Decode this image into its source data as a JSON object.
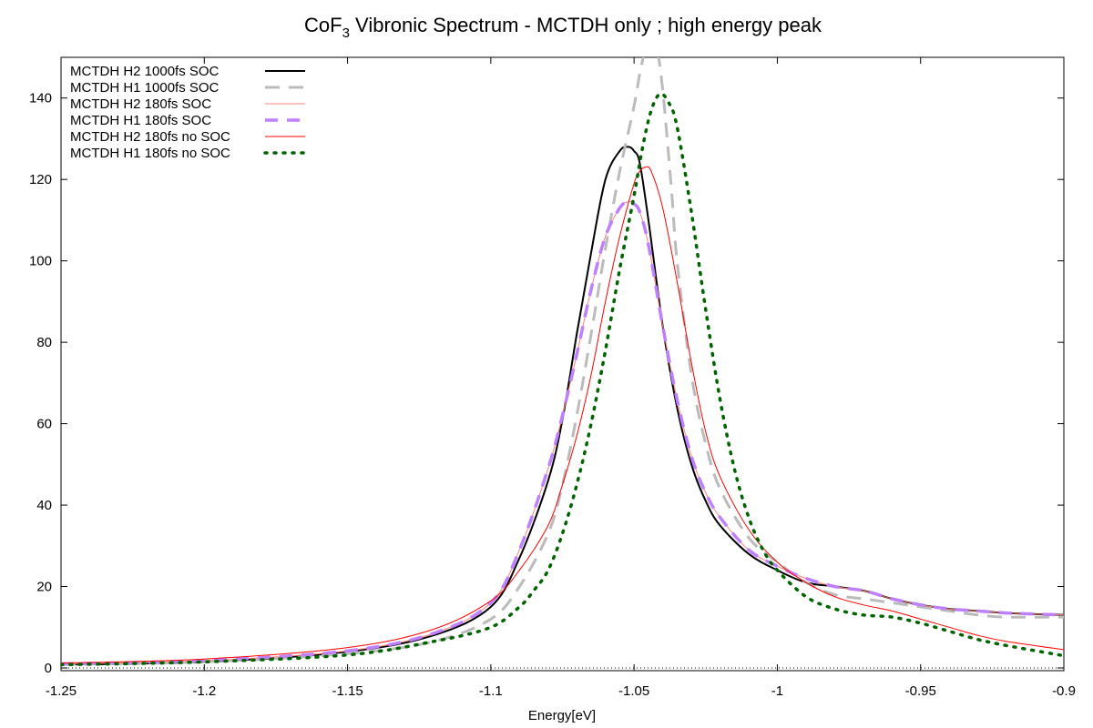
{
  "chart_data": {
    "type": "line",
    "title": {
      "main": "CoF",
      "sub": "3",
      "rest": " Vibronic Spectrum - MCTDH only ; high energy peak"
    },
    "xlabel": "Energy[eV]",
    "ylabel": "",
    "xlim": [
      -1.25,
      -0.9
    ],
    "ylim": [
      0,
      150
    ],
    "xticks": [
      -1.25,
      -1.2,
      -1.15,
      -1.1,
      -1.05,
      -1.0,
      -0.95,
      -0.9
    ],
    "xtick_labels": [
      "-1.25",
      "-1.2",
      "-1.15",
      "-1.1",
      "-1.05",
      "-1",
      "-0.95",
      "-0.9"
    ],
    "yticks": [
      0,
      20,
      40,
      60,
      80,
      100,
      120,
      140
    ],
    "ytick_labels": [
      "0",
      "20",
      "40",
      "60",
      "80",
      "100",
      "120",
      "140"
    ],
    "grid": false,
    "legend_position": "top-left",
    "baseline": {
      "y": 0,
      "style": "dotted",
      "color": "#000000"
    },
    "series": [
      {
        "name": "MCTDH H2 1000fs SOC",
        "color": "#000000",
        "dash": "solid",
        "width": 2,
        "x": [
          -1.25,
          -1.2,
          -1.15,
          -1.12,
          -1.1,
          -1.09,
          -1.08,
          -1.075,
          -1.07,
          -1.065,
          -1.06,
          -1.055,
          -1.052,
          -1.05,
          -1.048,
          -1.045,
          -1.04,
          -1.035,
          -1.03,
          -1.025,
          -1.02,
          -1.01,
          -1.0,
          -0.99,
          -0.98,
          -0.97,
          -0.96,
          -0.95,
          -0.94,
          -0.93,
          -0.92,
          -0.9
        ],
        "y": [
          0.8,
          1.5,
          4,
          8,
          15,
          27,
          46,
          61,
          82,
          102,
          120,
          127,
          128,
          127,
          124,
          110,
          84,
          64,
          50,
          41,
          35,
          28,
          24,
          21,
          20,
          19,
          17,
          15.5,
          14.5,
          14,
          13.5,
          13
        ]
      },
      {
        "name": "MCTDH H1 1000fs SOC",
        "color": "#bbbbbb",
        "dash": "dashed",
        "width": 3,
        "x": [
          -1.25,
          -1.2,
          -1.15,
          -1.12,
          -1.1,
          -1.09,
          -1.08,
          -1.075,
          -1.07,
          -1.065,
          -1.06,
          -1.055,
          -1.05,
          -1.048,
          -1.046,
          -1.044,
          -1.042,
          -1.04,
          -1.037,
          -1.035,
          -1.03,
          -1.025,
          -1.02,
          -1.01,
          -1.0,
          -0.99,
          -0.98,
          -0.97,
          -0.96,
          -0.95,
          -0.94,
          -0.93,
          -0.92,
          -0.9
        ],
        "y": [
          0.8,
          1.5,
          3.5,
          6.5,
          12,
          20,
          33,
          45,
          62,
          82,
          103,
          122,
          138,
          146,
          152,
          155,
          152,
          142,
          118,
          100,
          72,
          55,
          44,
          32,
          26,
          21,
          18,
          17,
          16,
          15,
          14,
          13,
          12.5,
          12.5
        ]
      },
      {
        "name": "MCTDH H2 180fs SOC",
        "color": "#ff8080",
        "dash": "solid",
        "width": 1,
        "x": [
          -1.25,
          -1.2,
          -1.15,
          -1.12,
          -1.1,
          -1.09,
          -1.08,
          -1.075,
          -1.07,
          -1.065,
          -1.06,
          -1.055,
          -1.052,
          -1.05,
          -1.048,
          -1.045,
          -1.04,
          -1.035,
          -1.03,
          -1.025,
          -1.02,
          -1.01,
          -1.0,
          -0.99,
          -0.98,
          -0.97,
          -0.96,
          -0.95,
          -0.94,
          -0.93,
          -0.92,
          -0.9
        ],
        "y": [
          1,
          1.8,
          4.2,
          8.5,
          16,
          29,
          49,
          62,
          77,
          93,
          106,
          113,
          114.5,
          114,
          112,
          104,
          84,
          66,
          52,
          43,
          37,
          29,
          25,
          22,
          20,
          19,
          17,
          15.5,
          14.5,
          14,
          13.5,
          13
        ]
      },
      {
        "name": "MCTDH H1 180fs SOC",
        "color": "#bf80ff",
        "dash": "dashed",
        "width": 3.5,
        "x": [
          -1.25,
          -1.2,
          -1.15,
          -1.12,
          -1.1,
          -1.09,
          -1.08,
          -1.075,
          -1.07,
          -1.065,
          -1.06,
          -1.055,
          -1.052,
          -1.05,
          -1.048,
          -1.045,
          -1.04,
          -1.035,
          -1.03,
          -1.025,
          -1.02,
          -1.01,
          -1.0,
          -0.99,
          -0.98,
          -0.97,
          -0.96,
          -0.95,
          -0.94,
          -0.93,
          -0.92,
          -0.9
        ],
        "y": [
          1,
          1.8,
          4.2,
          8.5,
          16,
          29,
          49,
          62,
          77,
          93,
          106,
          113,
          114.5,
          114,
          112,
          104,
          84,
          66,
          52,
          43,
          37,
          29,
          25,
          22,
          20,
          19,
          17,
          15.5,
          14.5,
          14,
          13.5,
          13
        ]
      },
      {
        "name": "MCTDH H2 180fs no SOC",
        "color": "#ff0000",
        "dash": "solid",
        "width": 1,
        "x": [
          -1.25,
          -1.2,
          -1.15,
          -1.12,
          -1.1,
          -1.09,
          -1.08,
          -1.075,
          -1.07,
          -1.065,
          -1.06,
          -1.055,
          -1.05,
          -1.048,
          -1.046,
          -1.044,
          -1.04,
          -1.035,
          -1.03,
          -1.025,
          -1.02,
          -1.01,
          -1.0,
          -0.99,
          -0.98,
          -0.97,
          -0.96,
          -0.95,
          -0.94,
          -0.93,
          -0.92,
          -0.9
        ],
        "y": [
          1.2,
          2.2,
          5,
          9.5,
          16.5,
          24,
          35,
          45,
          57,
          72,
          90,
          106,
          119,
          122,
          123,
          122,
          113,
          95,
          75,
          58,
          47,
          34,
          26,
          21,
          17.5,
          15.5,
          14,
          12,
          10,
          8,
          6.5,
          4.5
        ]
      },
      {
        "name": "MCTDH H1 180fs no SOC",
        "color": "#006400",
        "dash": "dotted",
        "width": 3.5,
        "x": [
          -1.25,
          -1.2,
          -1.15,
          -1.12,
          -1.1,
          -1.09,
          -1.085,
          -1.08,
          -1.075,
          -1.07,
          -1.065,
          -1.06,
          -1.055,
          -1.05,
          -1.047,
          -1.044,
          -1.041,
          -1.038,
          -1.035,
          -1.03,
          -1.025,
          -1.02,
          -1.015,
          -1.01,
          -1.005,
          -1.0,
          -0.99,
          -0.98,
          -0.97,
          -0.96,
          -0.95,
          -0.94,
          -0.93,
          -0.92,
          -0.9
        ],
        "y": [
          0.8,
          1.5,
          3.2,
          6.5,
          10,
          15,
          19,
          24,
          33,
          45,
          60,
          78,
          98,
          116,
          128,
          137,
          141,
          139,
          133,
          112,
          88,
          66,
          49,
          37,
          29,
          24,
          17.5,
          14.5,
          13,
          12.5,
          11,
          9,
          7,
          5.5,
          3
        ]
      }
    ]
  }
}
